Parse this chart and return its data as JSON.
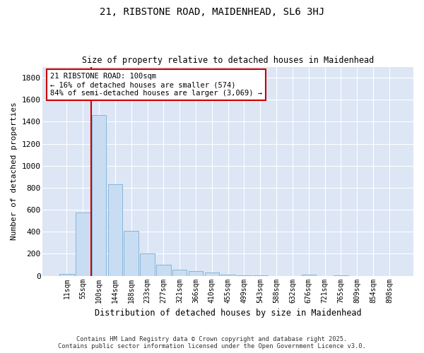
{
  "title_line1": "21, RIBSTONE ROAD, MAIDENHEAD, SL6 3HJ",
  "title_line2": "Size of property relative to detached houses in Maidenhead",
  "xlabel": "Distribution of detached houses by size in Maidenhead",
  "ylabel": "Number of detached properties",
  "footnote": "Contains HM Land Registry data © Crown copyright and database right 2025.\nContains public sector information licensed under the Open Government Licence v3.0.",
  "annotation_title": "21 RIBSTONE ROAD: 100sqm",
  "annotation_line2": "← 16% of detached houses are smaller (574)",
  "annotation_line3": "84% of semi-detached houses are larger (3,069) →",
  "bar_color": "#c9ddf2",
  "bar_edge_color": "#7aadd4",
  "vline_color": "#cc0000",
  "annotation_border_color": "#cc0000",
  "background_color": "#dce6f5",
  "categories": [
    "11sqm",
    "55sqm",
    "100sqm",
    "144sqm",
    "188sqm",
    "233sqm",
    "277sqm",
    "321sqm",
    "366sqm",
    "410sqm",
    "455sqm",
    "499sqm",
    "543sqm",
    "588sqm",
    "632sqm",
    "676sqm",
    "721sqm",
    "765sqm",
    "809sqm",
    "854sqm",
    "898sqm"
  ],
  "values": [
    15,
    574,
    1461,
    830,
    410,
    200,
    100,
    55,
    40,
    30,
    10,
    5,
    2,
    0,
    0,
    8,
    0,
    5,
    0,
    0,
    0
  ],
  "ylim": [
    0,
    1900
  ],
  "yticks": [
    0,
    200,
    400,
    600,
    800,
    1000,
    1200,
    1400,
    1600,
    1800
  ],
  "vline_x_left": 1.5,
  "figsize": [
    6.0,
    5.0
  ],
  "dpi": 100
}
